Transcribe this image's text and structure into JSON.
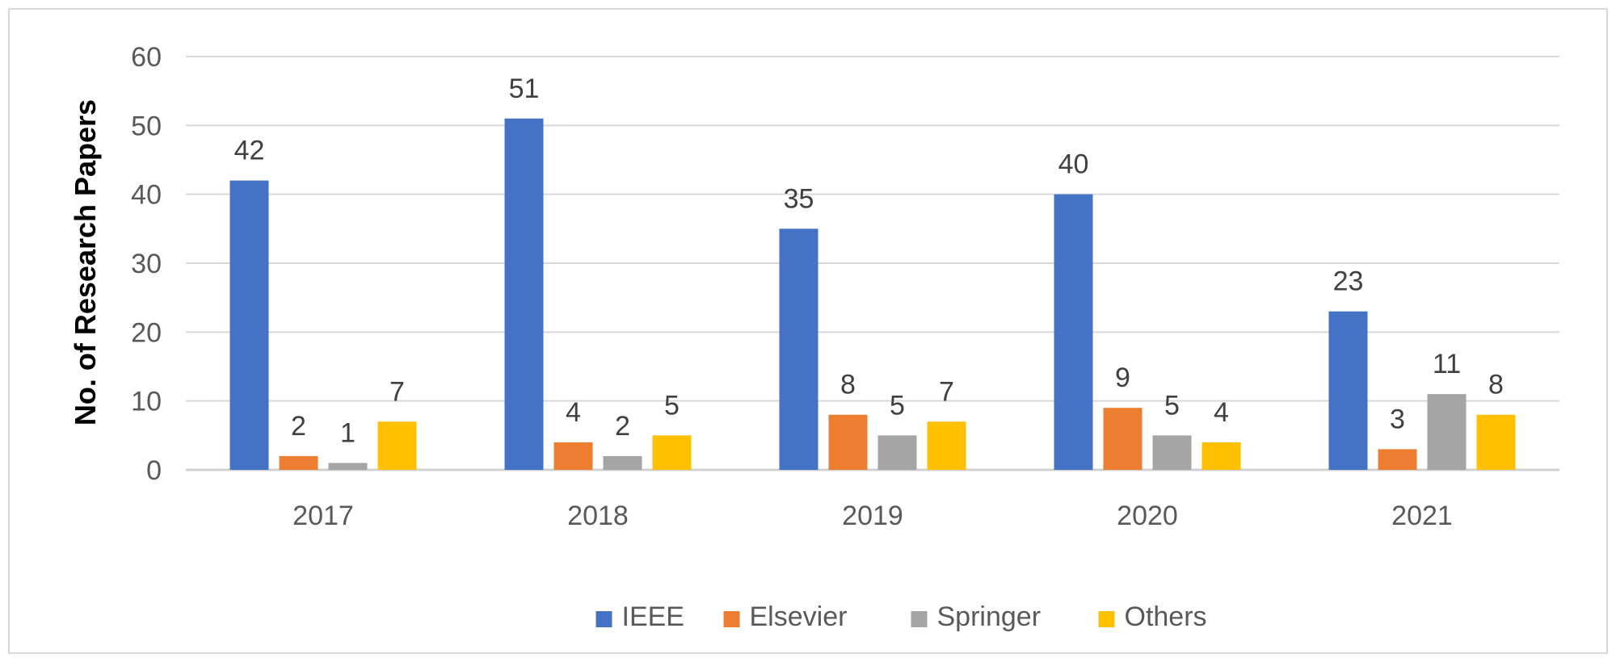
{
  "chart_data": {
    "type": "bar",
    "title": "",
    "xlabel": "",
    "ylabel": "No. of Research Papers",
    "ylim": [
      0,
      60
    ],
    "yticks": [
      "0",
      "10",
      "20",
      "30",
      "40",
      "50",
      "60"
    ],
    "grid": true,
    "legend_position": "bottom",
    "categories": [
      "2017",
      "2018",
      "2019",
      "2020",
      "2021"
    ],
    "series": [
      {
        "name": "IEEE",
        "color": "#4472c4",
        "values": [
          42,
          51,
          35,
          40,
          23
        ]
      },
      {
        "name": "Elsevier",
        "color": "#ed7d31",
        "values": [
          2,
          4,
          8,
          9,
          3
        ]
      },
      {
        "name": "Springer",
        "color": "#a5a5a5",
        "values": [
          1,
          2,
          5,
          5,
          11
        ]
      },
      {
        "name": "Others",
        "color": "#ffc000",
        "values": [
          7,
          5,
          7,
          4,
          8
        ]
      }
    ]
  }
}
